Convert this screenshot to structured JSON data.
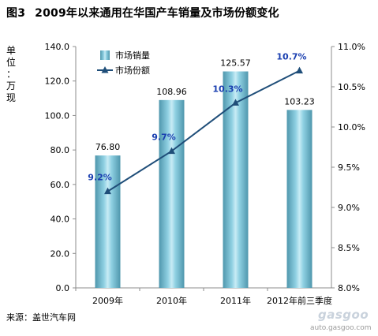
{
  "figure": {
    "label": "图3",
    "title": "2009年以来通用在华国产车销量及市场份额变化",
    "source": "来源：盖世汽车网",
    "watermark": {
      "logo": "gasgoo",
      "url": "auto.gasgoo.com"
    }
  },
  "chart_data": {
    "type": "bar",
    "categories": [
      "2009年",
      "2010年",
      "2011年",
      "2012年前三季度"
    ],
    "series": [
      {
        "name": "市场销量",
        "type": "bar",
        "axis": "left",
        "values": [
          76.8,
          108.96,
          125.57,
          103.23
        ],
        "labels": [
          "76.80",
          "108.96",
          "125.57",
          "103.23"
        ],
        "color": "#6fb7cc"
      },
      {
        "name": "市场份额",
        "type": "line",
        "axis": "right",
        "values": [
          9.2,
          9.7,
          10.3,
          10.7
        ],
        "labels": [
          "9.2%",
          "9.7%",
          "10.3%",
          "10.7%"
        ],
        "color": "#1f4e79"
      }
    ],
    "ylabel": "单位：万现",
    "ylim": [
      0,
      140
    ],
    "yticks": [
      "0.0",
      "20.0",
      "40.0",
      "60.0",
      "80.0",
      "100.0",
      "120.0",
      "140.0"
    ],
    "y2lim": [
      8.0,
      11.0
    ],
    "y2ticks": [
      "8.0%",
      "8.5%",
      "9.0%",
      "9.5%",
      "10.0%",
      "10.5%",
      "11.0%"
    ],
    "grid": false,
    "legend": "top-left",
    "label_color": "#1a3fb0"
  }
}
